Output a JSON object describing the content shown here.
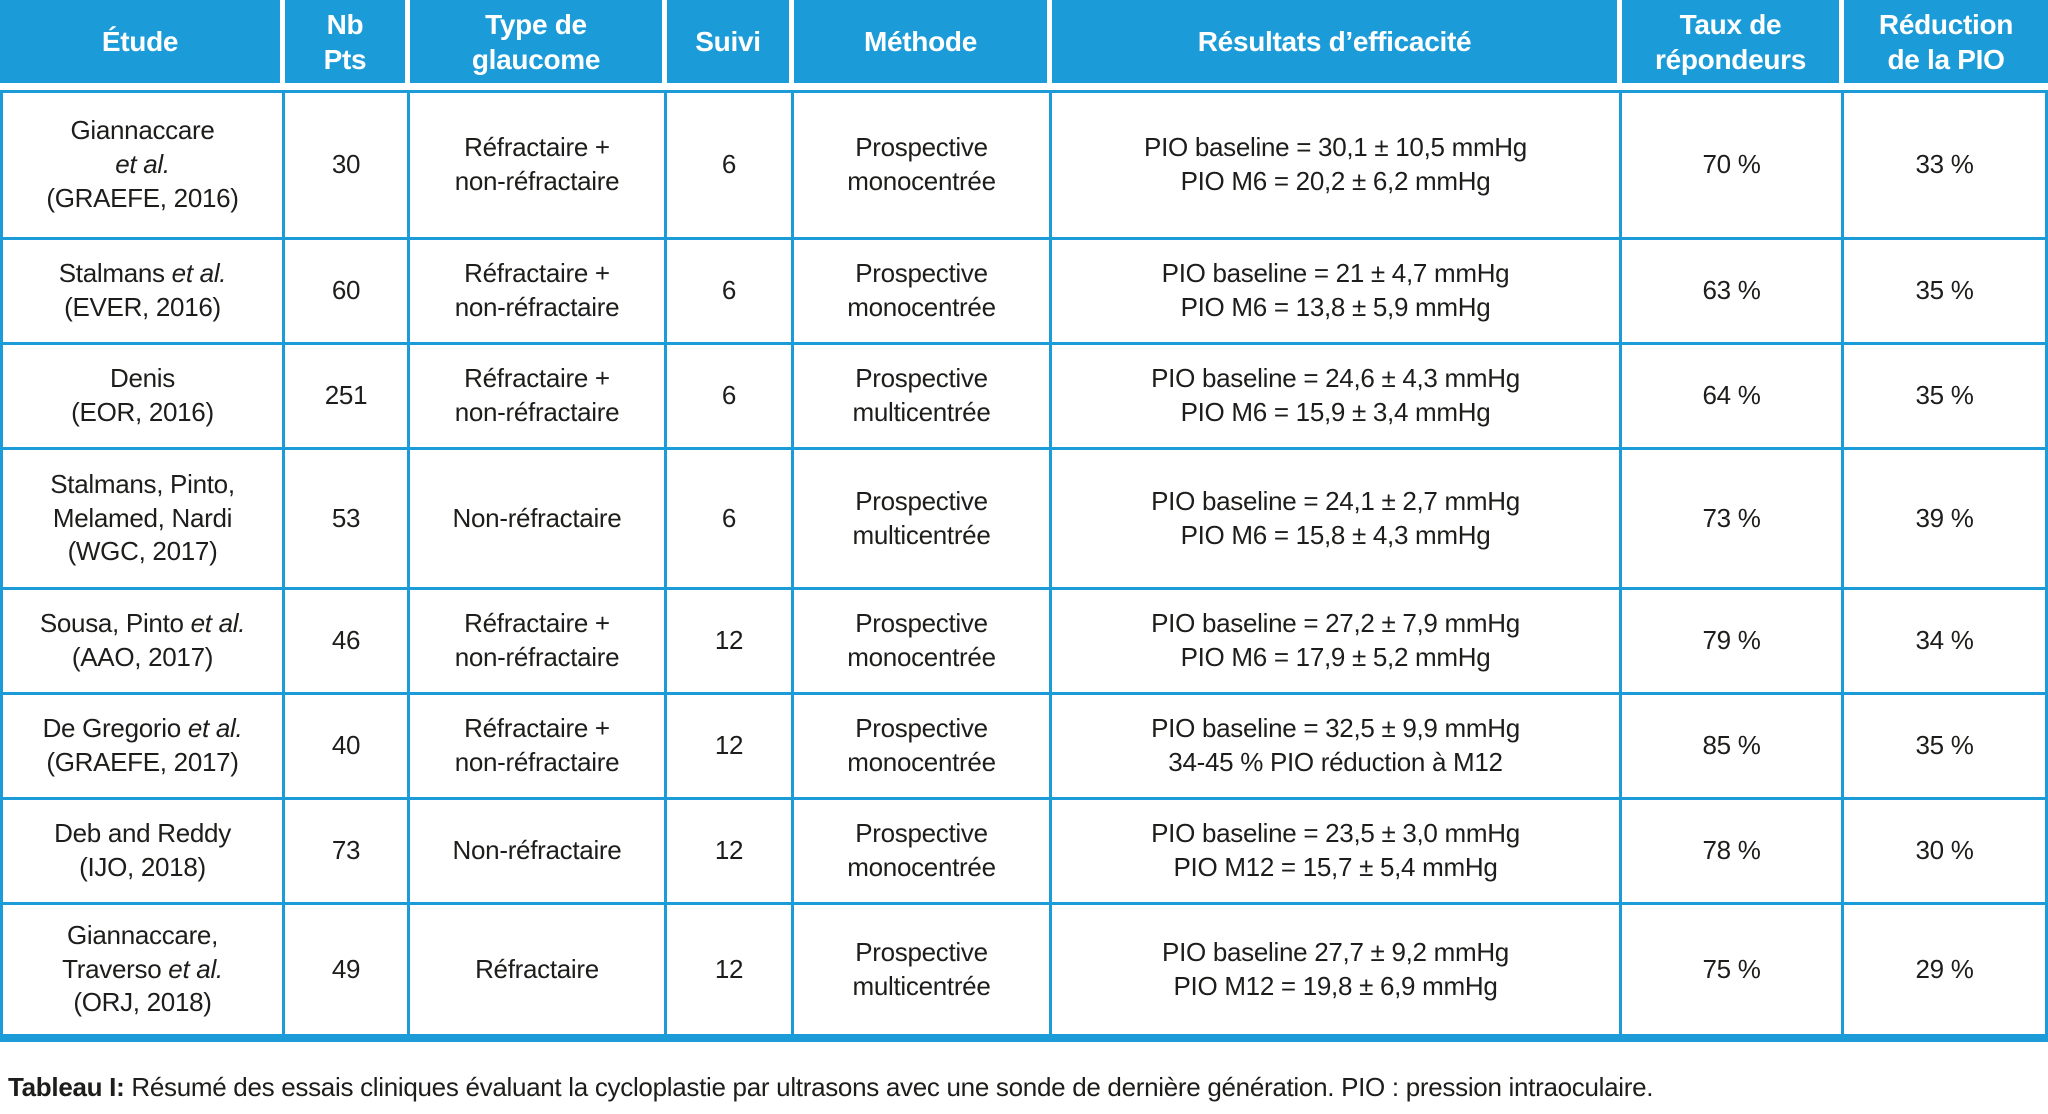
{
  "colors": {
    "accent": "#1b9cd8",
    "header_text": "#ffffff",
    "body_text": "#1d1d1b"
  },
  "table": {
    "columns": [
      {
        "key": "etude",
        "label_lines": [
          "Étude"
        ]
      },
      {
        "key": "nb_pts",
        "label_lines": [
          "Nb",
          "Pts"
        ]
      },
      {
        "key": "type_glaucome",
        "label_lines": [
          "Type de",
          "glaucome"
        ]
      },
      {
        "key": "suivi",
        "label_lines": [
          "Suivi"
        ]
      },
      {
        "key": "methode",
        "label_lines": [
          "Méthode"
        ]
      },
      {
        "key": "resultats",
        "label_lines": [
          "Résultats d’efficacité"
        ]
      },
      {
        "key": "taux_repondeurs",
        "label_lines": [
          "Taux de",
          "répondeurs"
        ]
      },
      {
        "key": "reduction_pio",
        "label_lines": [
          "Réduction",
          "de la PIO"
        ]
      }
    ],
    "rows": [
      {
        "etude_lines": [
          "Giannaccare",
          "*et al.*",
          "(GRAEFE, 2016)"
        ],
        "nb_pts": "30",
        "type_lines": [
          "Réfractaire +",
          "non-réfractaire"
        ],
        "suivi": "6",
        "methode_lines": [
          "Prospective",
          "monocentrée"
        ],
        "resultats_lines": [
          "PIO baseline = 30,1 ± 10,5 mmHg",
          "PIO M6 = 20,2 ± 6,2 mmHg"
        ],
        "taux": "70 %",
        "reduction": "33 %"
      },
      {
        "etude_lines": [
          "Stalmans *et al.*",
          "(EVER, 2016)"
        ],
        "nb_pts": "60",
        "type_lines": [
          "Réfractaire +",
          "non-réfractaire"
        ],
        "suivi": "6",
        "methode_lines": [
          "Prospective",
          "monocentrée"
        ],
        "resultats_lines": [
          "PIO baseline = 21 ± 4,7 mmHg",
          "PIO M6 = 13,8 ± 5,9 mmHg"
        ],
        "taux": "63 %",
        "reduction": "35 %"
      },
      {
        "etude_lines": [
          "Denis",
          "(EOR, 2016)"
        ],
        "nb_pts": "251",
        "type_lines": [
          "Réfractaire +",
          "non-réfractaire"
        ],
        "suivi": "6",
        "methode_lines": [
          "Prospective",
          "multicentrée"
        ],
        "resultats_lines": [
          "PIO baseline = 24,6 ± 4,3 mmHg",
          "PIO M6 = 15,9 ± 3,4 mmHg"
        ],
        "taux": "64 %",
        "reduction": "35 %"
      },
      {
        "etude_lines": [
          "Stalmans, Pinto,",
          "Melamed, Nardi",
          "(WGC, 2017)"
        ],
        "nb_pts": "53",
        "type_lines": [
          "Non-réfractaire"
        ],
        "suivi": "6",
        "methode_lines": [
          "Prospective",
          "multicentrée"
        ],
        "resultats_lines": [
          "PIO baseline = 24,1 ± 2,7 mmHg",
          "PIO M6 = 15,8 ± 4,3 mmHg"
        ],
        "taux": "73 %",
        "reduction": "39 %"
      },
      {
        "etude_lines": [
          "Sousa, Pinto *et al.*",
          "(AAO, 2017)"
        ],
        "nb_pts": "46",
        "type_lines": [
          "Réfractaire +",
          "non-réfractaire"
        ],
        "suivi": "12",
        "methode_lines": [
          "Prospective",
          "monocentrée"
        ],
        "resultats_lines": [
          "PIO baseline = 27,2 ± 7,9 mmHg",
          "PIO M6 = 17,9 ± 5,2 mmHg"
        ],
        "taux": "79 %",
        "reduction": "34 %"
      },
      {
        "etude_lines": [
          "De Gregorio *et al.*",
          "(GRAEFE, 2017)"
        ],
        "nb_pts": "40",
        "type_lines": [
          "Réfractaire +",
          "non-réfractaire"
        ],
        "suivi": "12",
        "methode_lines": [
          "Prospective",
          "monocentrée"
        ],
        "resultats_lines": [
          "PIO baseline = 32,5 ± 9,9 mmHg",
          "34-45 % PIO réduction à M12"
        ],
        "taux": "85 %",
        "reduction": "35 %"
      },
      {
        "etude_lines": [
          "Deb and Reddy",
          "(IJO, 2018)"
        ],
        "nb_pts": "73",
        "type_lines": [
          "Non-réfractaire"
        ],
        "suivi": "12",
        "methode_lines": [
          "Prospective",
          "monocentrée"
        ],
        "resultats_lines": [
          "PIO baseline = 23,5 ± 3,0 mmHg",
          "PIO M12 = 15,7 ± 5,4 mmHg"
        ],
        "taux": "78 %",
        "reduction": "30 %"
      },
      {
        "etude_lines": [
          "Giannaccare,",
          "Traverso *et al.*",
          "(ORJ, 2018)"
        ],
        "nb_pts": "49",
        "type_lines": [
          "Réfractaire"
        ],
        "suivi": "12",
        "methode_lines": [
          "Prospective",
          "multicentrée"
        ],
        "resultats_lines": [
          "PIO baseline 27,7 ± 9,2 mmHg",
          "PIO M12 = 19,8 ± 6,9 mmHg"
        ],
        "taux": "75 %",
        "reduction": "29 %"
      }
    ]
  },
  "caption": {
    "label": "Tableau I:",
    "text": " Résumé des essais cliniques évaluant la cycloplastie par ultrasons avec une sonde de dernière génération. PIO : pression intraoculaire."
  }
}
